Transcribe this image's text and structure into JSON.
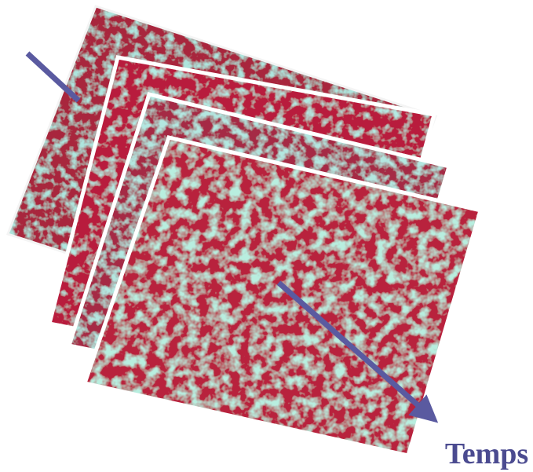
{
  "label": "Temps"
}
